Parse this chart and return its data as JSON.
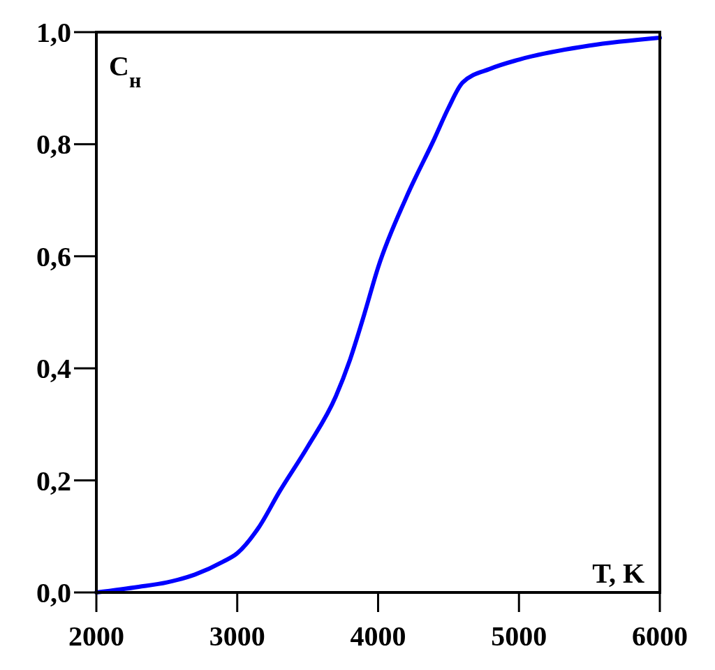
{
  "chart_data": {
    "type": "line",
    "ylabel": "C$_{н}$",
    "xlabel": "T, K",
    "x": [
      2000,
      2300,
      2500,
      2700,
      2900,
      3000,
      3150,
      3300,
      3500,
      3700,
      3800,
      3900,
      4000,
      4200,
      4400,
      4500,
      4600,
      4800,
      5000,
      5500,
      6000
    ],
    "series": [
      {
        "color": "#0000ff",
        "values": [
          0.0,
          0.01,
          0.018,
          0.032,
          0.055,
          0.07,
          0.115,
          0.18,
          0.26,
          0.35,
          0.415,
          0.495,
          0.58,
          0.705,
          0.81,
          0.865,
          0.91,
          0.935,
          0.951,
          0.976,
          0.99
        ]
      }
    ],
    "xlim": [
      2000,
      6000
    ],
    "xticks": [
      2000,
      3000,
      4000,
      5000,
      6000
    ],
    "ylim": [
      0,
      1
    ],
    "yticks": [
      {
        "value": 0,
        "label": "0,0"
      },
      {
        "value": 0.2,
        "label": "0,2"
      },
      {
        "value": 0.4,
        "label": "0,4"
      },
      {
        "value": 0.6,
        "label": "0,6"
      },
      {
        "value": 0.8,
        "label": "0,8"
      },
      {
        "value": 1,
        "label": "1,0"
      }
    ],
    "grid": false,
    "marker": "none",
    "line_style": "solid"
  }
}
